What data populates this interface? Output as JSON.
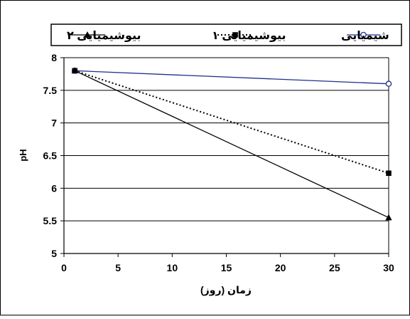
{
  "chart_data": {
    "type": "line",
    "title": "",
    "xlabel": "زمان (روز)",
    "ylabel": "pH",
    "xlim": [
      0,
      30
    ],
    "ylim": [
      5,
      8
    ],
    "xticks": [
      0,
      5,
      10,
      15,
      20,
      25,
      30
    ],
    "yticks": [
      5,
      5.5,
      6,
      6.5,
      7,
      7.5,
      8
    ],
    "grid": "horizontal",
    "legend_position": "top",
    "series": [
      {
        "name": "شیمیایی",
        "x": [
          1,
          30
        ],
        "y": [
          7.8,
          7.6
        ],
        "color": "#1f2f8f",
        "marker": "circle-open",
        "line": "solid"
      },
      {
        "name": "بیوشیمیایی ۱",
        "x": [
          1,
          30
        ],
        "y": [
          7.8,
          6.23
        ],
        "color": "#000000",
        "marker": "square",
        "line": "dotted"
      },
      {
        "name": "بیوشیمیایی ۲",
        "x": [
          1,
          30
        ],
        "y": [
          7.8,
          5.55
        ],
        "color": "#000000",
        "marker": "triangle",
        "line": "solid"
      }
    ]
  }
}
